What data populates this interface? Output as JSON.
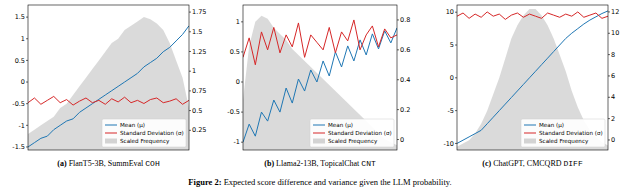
{
  "chart_data": [
    {
      "type": "line",
      "caption_tag": "(a)",
      "caption": "FlanT5-3B, SummEval",
      "caption_code": "COH",
      "x": [
        0,
        0.04,
        0.08,
        0.12,
        0.16,
        0.2,
        0.24,
        0.28,
        0.32,
        0.36,
        0.4,
        0.44,
        0.48,
        0.52,
        0.56,
        0.6,
        0.64,
        0.68,
        0.72,
        0.76,
        0.8,
        0.84,
        0.88,
        0.92,
        0.96,
        1
      ],
      "xlim": [
        0,
        1
      ],
      "ylim": [
        -1.57,
        1.78
      ],
      "yticks": [
        -1.5,
        -1.0,
        -0.5,
        0.0,
        0.5,
        1.0,
        1.5
      ],
      "y2lim": [
        0.0,
        1.84
      ],
      "y2ticks": [
        0.25,
        0.5,
        0.75,
        1.0,
        1.25,
        1.5,
        1.75
      ],
      "grid": false,
      "legend": "lower right",
      "tick_labels": "y",
      "series": [
        {
          "name": "Mean (μ)",
          "color": "#1f77b4",
          "type": "line",
          "values": [
            -1.5,
            -1.4,
            -1.3,
            -1.25,
            -1.1,
            -1.0,
            -0.9,
            -0.85,
            -0.7,
            -0.6,
            -0.5,
            -0.4,
            -0.3,
            -0.2,
            -0.1,
            0.0,
            0.1,
            0.2,
            0.35,
            0.45,
            0.55,
            0.7,
            0.8,
            0.95,
            1.1,
            1.3
          ]
        },
        {
          "name": "Standard Deviation (σ)",
          "color": "#d62728",
          "type": "line",
          "axis": "y2",
          "values": [
            0.6,
            0.66,
            0.58,
            0.63,
            0.68,
            0.6,
            0.64,
            0.57,
            0.62,
            0.66,
            0.6,
            0.63,
            0.58,
            0.65,
            0.61,
            0.67,
            0.6,
            0.63,
            0.59,
            0.64,
            0.66,
            0.6,
            0.62,
            0.65,
            0.58,
            0.63
          ]
        },
        {
          "name": "Scaled Frequency",
          "color": "#d3d3d3",
          "type": "area",
          "values": [
            -1.2,
            -1.1,
            -1.0,
            -0.9,
            -0.8,
            -0.6,
            -0.5,
            -0.3,
            -0.1,
            0.1,
            0.3,
            0.5,
            0.7,
            0.9,
            1.0,
            1.2,
            1.3,
            1.4,
            1.5,
            1.45,
            1.35,
            1.2,
            0.9,
            0.5,
            0.1,
            -0.6
          ]
        }
      ]
    },
    {
      "type": "line",
      "caption_tag": "(b)",
      "caption": "Llama2-13B, TopicalChat",
      "caption_code": "CNT",
      "x": [
        0,
        0.04,
        0.08,
        0.12,
        0.16,
        0.2,
        0.24,
        0.28,
        0.32,
        0.36,
        0.4,
        0.44,
        0.48,
        0.52,
        0.56,
        0.6,
        0.64,
        0.68,
        0.72,
        0.76,
        0.8,
        0.84,
        0.88,
        0.92,
        0.96,
        1
      ],
      "xlim": [
        0,
        1
      ],
      "ylim": [
        -1.13,
        1.28
      ],
      "yticks": [
        -1.0,
        -0.5,
        0.0,
        0.5,
        1.0
      ],
      "y2lim": [
        -0.07,
        0.9
      ],
      "y2ticks": [
        0.0,
        0.2,
        0.4,
        0.6,
        0.8
      ],
      "grid": false,
      "legend": "lower right",
      "tick_labels": "y",
      "series": [
        {
          "name": "Mean (μ)",
          "color": "#1f77b4",
          "type": "line",
          "values": [
            -1.0,
            -0.7,
            -0.9,
            -0.5,
            -0.65,
            -0.3,
            -0.5,
            -0.1,
            -0.35,
            0.05,
            -0.15,
            0.2,
            0.0,
            0.35,
            0.1,
            0.5,
            0.25,
            0.6,
            0.35,
            0.7,
            0.45,
            0.8,
            0.55,
            0.85,
            0.65,
            0.9
          ]
        },
        {
          "name": "Standard Deviation (σ)",
          "color": "#d62728",
          "type": "line",
          "axis": "y2",
          "values": [
            0.55,
            0.68,
            0.5,
            0.72,
            0.6,
            0.75,
            0.58,
            0.7,
            0.62,
            0.78,
            0.55,
            0.7,
            0.65,
            0.6,
            0.75,
            0.58,
            0.72,
            0.66,
            0.8,
            0.6,
            0.7,
            0.76,
            0.62,
            0.74,
            0.68,
            0.7
          ]
        },
        {
          "name": "Scaled Frequency",
          "color": "#d3d3d3",
          "type": "area",
          "values": [
            -0.3,
            0.6,
            1.0,
            1.1,
            1.05,
            0.9,
            0.8,
            0.7,
            0.55,
            0.45,
            0.35,
            0.25,
            0.15,
            0.05,
            -0.05,
            -0.15,
            -0.25,
            -0.35,
            -0.45,
            -0.55,
            -0.65,
            -0.75,
            -0.85,
            -0.95,
            -1.0,
            -1.05
          ]
        }
      ]
    },
    {
      "type": "line",
      "caption_tag": "(c)",
      "caption": "ChatGPT, CMCQRD",
      "caption_code": "DIFF",
      "x": [
        0,
        0.04,
        0.08,
        0.12,
        0.16,
        0.2,
        0.24,
        0.28,
        0.32,
        0.36,
        0.4,
        0.44,
        0.48,
        0.52,
        0.56,
        0.6,
        0.64,
        0.68,
        0.72,
        0.76,
        0.8,
        0.84,
        0.88,
        0.92,
        0.96,
        1
      ],
      "xlim": [
        0,
        1
      ],
      "ylim": [
        -11,
        11.1
      ],
      "yticks": [
        -10,
        -5,
        0,
        5,
        10
      ],
      "y2lim": [
        -0.94,
        12.65
      ],
      "y2ticks": [
        0,
        2,
        4,
        6,
        8,
        10,
        12
      ],
      "grid": false,
      "legend": "lower right",
      "tick_labels": "y",
      "series": [
        {
          "name": "Mean (μ)",
          "color": "#1f77b4",
          "type": "line",
          "values": [
            -10,
            -9.5,
            -9,
            -8.5,
            -8,
            -7,
            -6,
            -5,
            -4,
            -3,
            -2,
            -1,
            0,
            1,
            2,
            3,
            4,
            5,
            6,
            6.8,
            7.5,
            8.2,
            8.8,
            9.3,
            9.8,
            10.2
          ]
        },
        {
          "name": "Standard Deviation (σ)",
          "color": "#d62728",
          "type": "line",
          "axis": "y2",
          "values": [
            11.6,
            11.9,
            11.4,
            11.8,
            11.5,
            12.0,
            11.6,
            11.8,
            11.3,
            11.7,
            11.9,
            11.5,
            11.8,
            11.6,
            11.4,
            11.9,
            11.7,
            11.5,
            11.8,
            11.6,
            12.0,
            11.5,
            11.7,
            11.9,
            11.4,
            11.6
          ]
        },
        {
          "name": "Scaled Frequency",
          "color": "#d3d3d3",
          "type": "area",
          "values": [
            -10.5,
            -10,
            -9.5,
            -8.5,
            -7,
            -5,
            -2.5,
            0,
            3,
            6,
            8,
            9.5,
            10.5,
            10.5,
            9.5,
            8,
            6,
            3.5,
            1,
            -2,
            -4.5,
            -6.5,
            -8,
            -9,
            -9.8,
            -10.3
          ]
        }
      ]
    }
  ],
  "figure_caption_label": "Figure 2:",
  "figure_caption": "Expected score difference and variance given the LLM probability."
}
